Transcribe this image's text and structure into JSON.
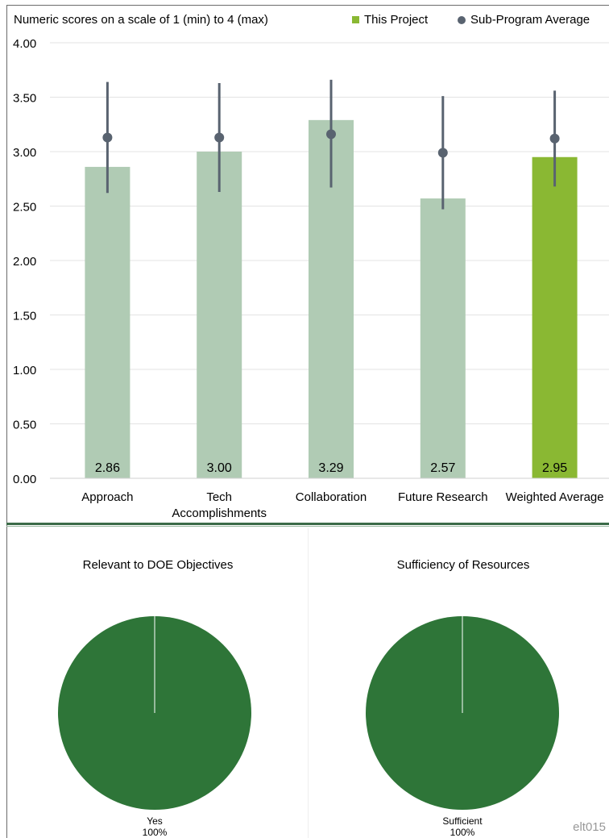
{
  "chart_data": [
    {
      "type": "bar",
      "subtitle": "Numeric scores on a scale of 1 (min) to 4 (max)",
      "categories": [
        "Approach",
        "Tech\nAccomplishments",
        "Collaboration",
        "Future Research",
        "Weighted Average"
      ],
      "series": [
        {
          "name": "This Project",
          "values": [
            2.86,
            3.0,
            3.29,
            2.57,
            2.95
          ],
          "labels": [
            "2.86",
            "3.00",
            "3.29",
            "2.57",
            "2.95"
          ],
          "color": "#b0cbb4",
          "highlight_color": "#8ab833",
          "highlight_index": 4
        },
        {
          "name": "Sub-Program Average",
          "values": [
            3.13,
            3.13,
            3.16,
            2.99,
            3.12
          ],
          "error_low": [
            2.62,
            2.63,
            2.67,
            2.47,
            2.68
          ],
          "error_high": [
            3.64,
            3.63,
            3.66,
            3.51,
            3.56
          ],
          "color": "#596370"
        }
      ],
      "ylim": [
        0,
        4
      ],
      "yticks": [
        0,
        0.5,
        1,
        1.5,
        2,
        2.5,
        3,
        3.5,
        4
      ],
      "ytick_labels": [
        "0.00",
        "0.50",
        "1.00",
        "1.50",
        "2.00",
        "2.50",
        "3.00",
        "3.50",
        "4.00"
      ],
      "grid": true,
      "legend_position": "top-right"
    },
    {
      "type": "pie",
      "title": "Relevant to DOE Objectives",
      "slices": [
        {
          "label": "Yes",
          "value": 100,
          "percent_label": "100%"
        }
      ],
      "color": "#2e7538"
    },
    {
      "type": "pie",
      "title": "Sufficiency of Resources",
      "slices": [
        {
          "label": "Sufficient",
          "value": 100,
          "percent_label": "100%"
        }
      ],
      "color": "#2e7538"
    }
  ],
  "watermark": "elt015"
}
